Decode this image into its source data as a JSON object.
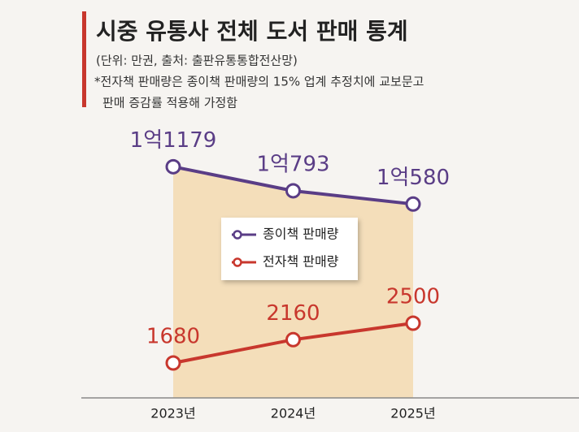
{
  "chart_data": {
    "type": "line",
    "title": "시중 유통사 전체 도서 판매 통계",
    "subtitle": "(단위: 만권, 출처: 출판유통통합전산망)",
    "notes": [
      "*전자책 판매량은 종이책 판매량의 15% 업계 추정치에 교보문고",
      "판매 증감률 적용해 가정함"
    ],
    "categories": [
      "2023년",
      "2024년",
      "2025년"
    ],
    "series": [
      {
        "name": "종이책 판매량",
        "color": "#5a3d86",
        "axis": "y2",
        "values": [
          11179,
          10793,
          10580
        ],
        "value_labels": [
          "1억1179",
          "1억793",
          "1억580"
        ],
        "area_color": "#f3d9b0"
      },
      {
        "name": "전자책 판매량",
        "color": "#c8372d",
        "values": [
          1680,
          2160,
          2500
        ]
      }
    ],
    "ylim": [
      960,
      6650
    ],
    "y2lim": [
      7470,
      11900
    ],
    "grid": false,
    "legend": "center"
  }
}
